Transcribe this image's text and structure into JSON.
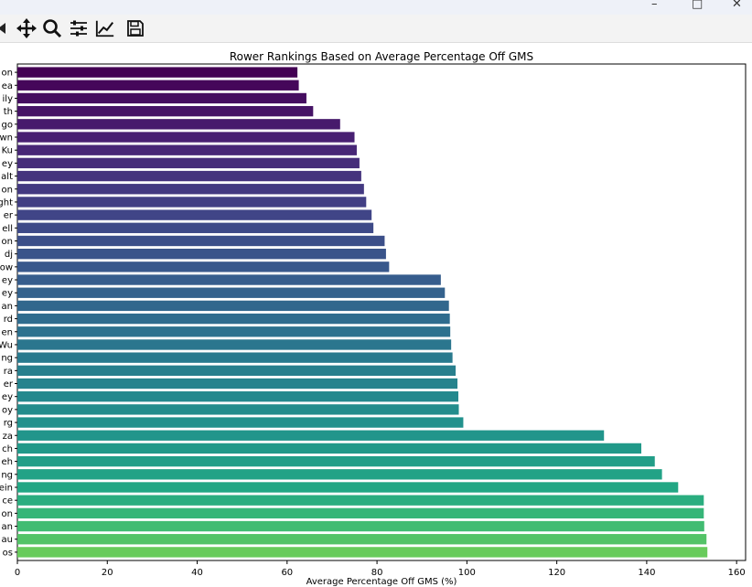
{
  "toolbar": {
    "tools": [
      "back-arrow-icon",
      "pan-icon",
      "zoom-icon",
      "configure-subplots-icon",
      "edit-axis-icon",
      "save-icon"
    ]
  },
  "window": {
    "controls": [
      "minimize",
      "maximize",
      "close"
    ]
  },
  "chart_data": {
    "type": "bar",
    "orientation": "horizontal",
    "title": "Rower Rankings Based on Average Percentage Off GMS",
    "xlabel": "Average Percentage Off GMS (%)",
    "ylabel": "",
    "xlim": [
      0,
      162
    ],
    "xticks": [
      "0",
      "20",
      "40",
      "60",
      "80",
      "100",
      "120",
      "140",
      "160"
    ],
    "colormap": "viridis",
    "categories": [
      "on",
      "ea",
      "ily",
      "th",
      "go",
      "wn",
      "Ku",
      "ey",
      "alt",
      "on",
      "ght",
      "er",
      "ell",
      "on",
      "dj",
      "ow",
      "ey",
      "ey",
      "an",
      "rd",
      "en",
      "Wu",
      "ng",
      "ra",
      "er",
      "ey",
      "oy",
      "rg",
      "za",
      "ch",
      "eh",
      "ng",
      "ein",
      "ce",
      "on",
      "an",
      "au",
      "os"
    ],
    "values": [
      62.3,
      62.6,
      64.3,
      65.8,
      71.8,
      75.0,
      75.5,
      76.1,
      76.5,
      77.1,
      77.6,
      78.8,
      79.2,
      81.7,
      82.0,
      82.7,
      94.2,
      95.1,
      96.0,
      96.2,
      96.3,
      96.5,
      96.8,
      97.5,
      97.9,
      98.1,
      98.2,
      99.2,
      130.5,
      138.8,
      141.8,
      143.4,
      147.0,
      152.7,
      152.7,
      152.8,
      153.3,
      153.5
    ]
  }
}
